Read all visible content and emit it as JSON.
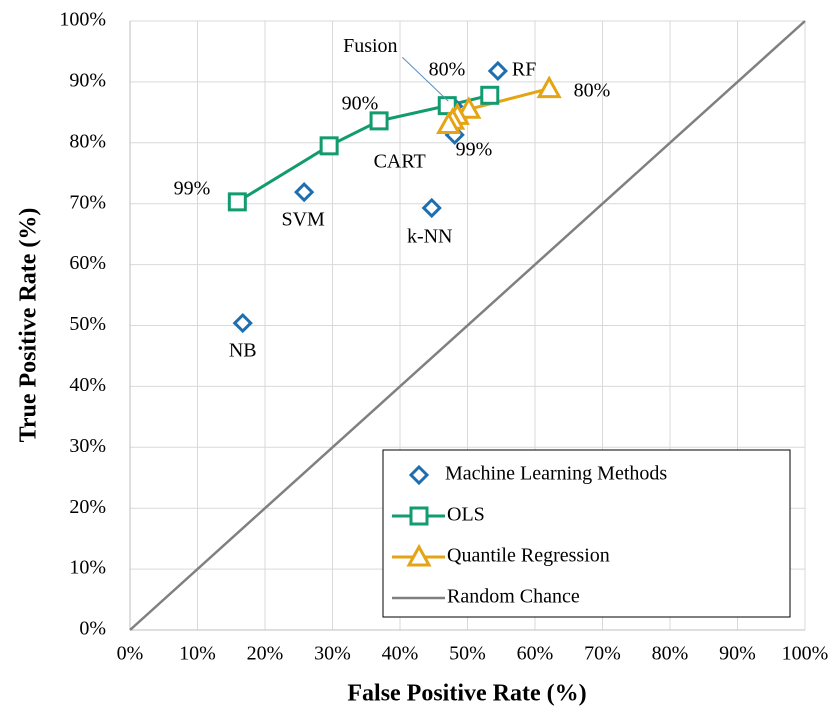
{
  "chart_data": {
    "type": "scatter",
    "x_label": "False Positive Rate (%)",
    "y_label": "True Positive Rate (%)",
    "xlim": [
      0,
      100
    ],
    "ylim": [
      0,
      100
    ],
    "xticks": [
      {
        "value": 0,
        "label": "0%"
      },
      {
        "value": 10,
        "label": "10%"
      },
      {
        "value": 20,
        "label": "20%"
      },
      {
        "value": 30,
        "label": "30%"
      },
      {
        "value": 40,
        "label": "40%"
      },
      {
        "value": 50,
        "label": "50%"
      },
      {
        "value": 60,
        "label": "60%"
      },
      {
        "value": 70,
        "label": "70%"
      },
      {
        "value": 80,
        "label": "80%"
      },
      {
        "value": 90,
        "label": "90%"
      },
      {
        "value": 100,
        "label": "100%"
      }
    ],
    "yticks": [
      {
        "value": 0,
        "label": "0%"
      },
      {
        "value": 10,
        "label": "10%"
      },
      {
        "value": 20,
        "label": "20%"
      },
      {
        "value": 30,
        "label": "30%"
      },
      {
        "value": 40,
        "label": "40%"
      },
      {
        "value": 50,
        "label": "50%"
      },
      {
        "value": 60,
        "label": "60%"
      },
      {
        "value": 70,
        "label": "70%"
      },
      {
        "value": 80,
        "label": "80%"
      },
      {
        "value": 90,
        "label": "90%"
      },
      {
        "value": 100,
        "label": "100%"
      }
    ],
    "grid": true,
    "legend": "lower right",
    "series": [
      {
        "name": "Machine Learning Methods",
        "color": "#1f6fb0",
        "marker": "diamond",
        "x": [
          54.5,
          47.9,
          48.1,
          44.7,
          25.8,
          16.7
        ],
        "values": [
          91.8,
          86.0,
          81.3,
          69.3,
          71.9,
          50.4
        ],
        "point_labels": [
          "RF",
          "Fusion",
          "CART",
          "k-NN",
          "SVM",
          "NB"
        ]
      },
      {
        "name": "OLS",
        "color": "#129b6f",
        "marker": "square",
        "x": [
          15.9,
          29.5,
          36.9,
          47.0,
          53.3
        ],
        "values": [
          70.3,
          79.5,
          83.6,
          86.1,
          87.8
        ]
      },
      {
        "name": "Quantile Regression",
        "color": "#e5a414",
        "marker": "triangle",
        "x": [
          62.1,
          50.2,
          48.5,
          47.8,
          47.2
        ],
        "values": [
          88.9,
          85.5,
          84.5,
          83.7,
          83.0
        ]
      },
      {
        "name": "Random Chance",
        "color": "#808080",
        "marker": "none",
        "x": [
          0,
          100
        ],
        "values": [
          0,
          100
        ]
      }
    ],
    "annotations": [
      "99%",
      "90%",
      "80%",
      "80%",
      "99%"
    ]
  }
}
